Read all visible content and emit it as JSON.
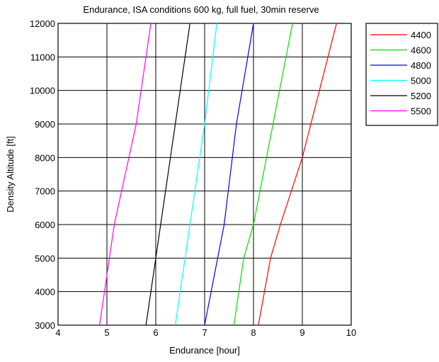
{
  "chart_data": {
    "type": "line",
    "title": "Endurance, ISA conditions 600 kg, full fuel, 30min reserve",
    "xlabel": "Endurance [hour]",
    "ylabel": "Density Altitude [ft]",
    "xlim": [
      4,
      10
    ],
    "ylim": [
      3000,
      12000
    ],
    "xticks": [
      "4",
      "5",
      "6",
      "7",
      "8",
      "9",
      "10"
    ],
    "yticks": [
      "3000",
      "4000",
      "5000",
      "6000",
      "7000",
      "8000",
      "9000",
      "10000",
      "11000",
      "12000"
    ],
    "grid": true,
    "legend_position": "outside-top-right",
    "series": [
      {
        "name": "4400",
        "color": "#ff0000",
        "points": [
          [
            8.1,
            3000
          ],
          [
            8.35,
            5000
          ],
          [
            8.55,
            6000
          ],
          [
            9.0,
            8000
          ],
          [
            9.7,
            12000
          ]
        ]
      },
      {
        "name": "4600",
        "color": "#00dd00",
        "points": [
          [
            7.6,
            3000
          ],
          [
            7.8,
            5000
          ],
          [
            8.0,
            6000
          ],
          [
            8.4,
            9000
          ],
          [
            8.8,
            12000
          ]
        ]
      },
      {
        "name": "4800",
        "color": "#0000ff",
        "points": [
          [
            7.0,
            3000
          ],
          [
            7.4,
            6000
          ],
          [
            7.65,
            9000
          ],
          [
            8.0,
            12000
          ]
        ]
      },
      {
        "name": "5000",
        "color": "#00ffff",
        "points": [
          [
            6.4,
            3000
          ],
          [
            6.6,
            5000
          ],
          [
            7.0,
            9000
          ],
          [
            7.25,
            12000
          ]
        ]
      },
      {
        "name": "5200",
        "color": "#000000",
        "points": [
          [
            5.8,
            3000
          ],
          [
            6.0,
            5000
          ],
          [
            6.3,
            8000
          ],
          [
            6.7,
            12000
          ]
        ]
      },
      {
        "name": "5500",
        "color": "#ff00ff",
        "points": [
          [
            4.85,
            3000
          ],
          [
            4.95,
            4000
          ],
          [
            5.15,
            6000
          ],
          [
            5.6,
            9000
          ],
          [
            5.9,
            12000
          ]
        ]
      }
    ]
  }
}
